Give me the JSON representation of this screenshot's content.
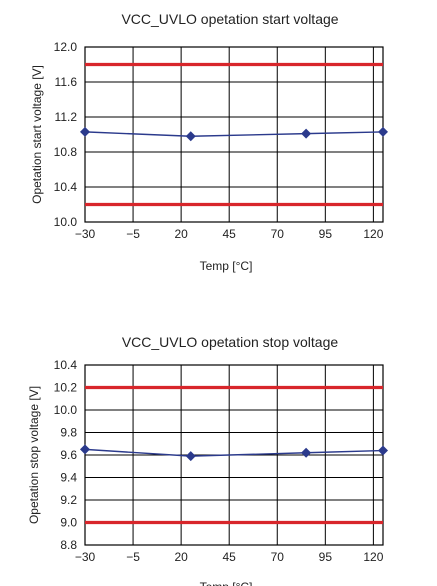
{
  "chart_data": [
    {
      "type": "line",
      "title": "VCC_UVLO opetation start voltage",
      "xlabel": "Temp [°C]",
      "ylabel": "Opetation start voltage [V]",
      "xlim": [
        -30,
        125
      ],
      "ylim": [
        10.0,
        12.0
      ],
      "xticks": [
        -30,
        -5,
        20,
        45,
        70,
        95,
        120
      ],
      "yticks": [
        10.0,
        10.4,
        10.8,
        11.2,
        11.6,
        12.0
      ],
      "xtick_labels": [
        "−30",
        "−5",
        "20",
        "45",
        "70",
        "95",
        "120"
      ],
      "ytick_labels": [
        "10.0",
        "10.4",
        "10.8",
        "11.2",
        "11.6",
        "12.0"
      ],
      "grid": true,
      "reference_lines": [
        11.8,
        10.2
      ],
      "series": [
        {
          "x": [
            -30,
            25,
            85,
            125
          ],
          "values": [
            11.03,
            10.98,
            11.01,
            11.03
          ]
        }
      ],
      "colors": {
        "series": "#2b3a8c",
        "reference": "#d8262b"
      }
    },
    {
      "type": "line",
      "title": "VCC_UVLO opetation stop voltage",
      "xlabel": "Temp [°C]",
      "ylabel": "Opetation stop voltage [V]",
      "xlim": [
        -30,
        125
      ],
      "ylim": [
        8.8,
        10.4
      ],
      "xticks": [
        -30,
        -5,
        20,
        45,
        70,
        95,
        120
      ],
      "yticks": [
        8.8,
        9.0,
        9.2,
        9.4,
        9.6,
        9.8,
        10.0,
        10.2,
        10.4
      ],
      "xtick_labels": [
        "−30",
        "−5",
        "20",
        "45",
        "70",
        "95",
        "120"
      ],
      "ytick_labels": [
        "8.8",
        "9.0",
        "9.2",
        "9.4",
        "9.6",
        "9.8",
        "10.0",
        "10.2",
        "10.4"
      ],
      "grid": true,
      "reference_lines": [
        10.2,
        9.0
      ],
      "series": [
        {
          "x": [
            -30,
            25,
            85,
            125
          ],
          "values": [
            9.65,
            9.59,
            9.62,
            9.64
          ]
        }
      ],
      "colors": {
        "series": "#2b3a8c",
        "reference": "#d8262b"
      }
    }
  ]
}
